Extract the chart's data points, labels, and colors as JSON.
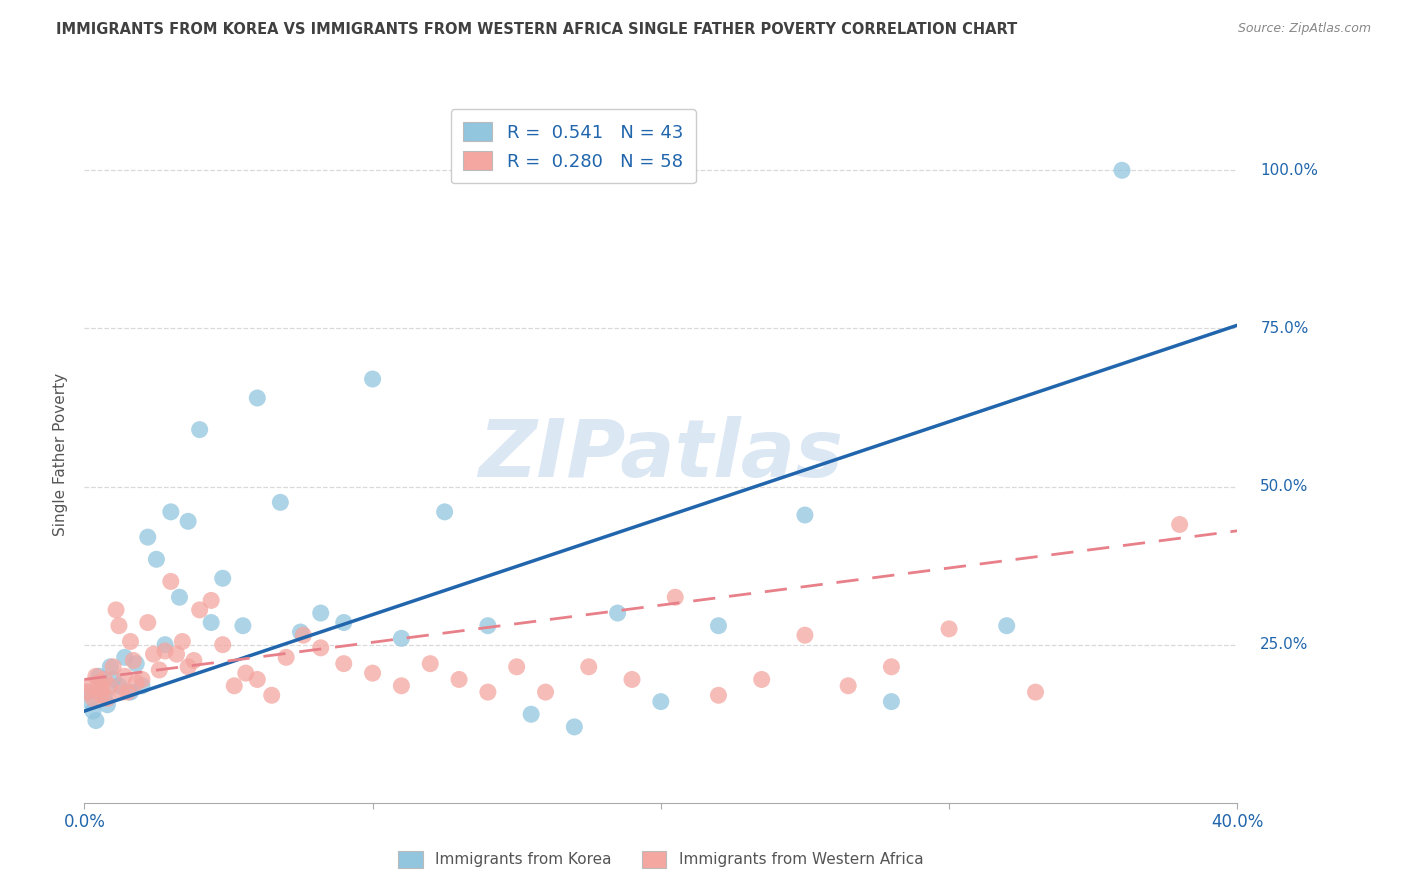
{
  "title": "IMMIGRANTS FROM KOREA VS IMMIGRANTS FROM WESTERN AFRICA SINGLE FATHER POVERTY CORRELATION CHART",
  "source": "Source: ZipAtlas.com",
  "ylabel": "Single Father Poverty",
  "right_yticks": [
    "100.0%",
    "75.0%",
    "50.0%",
    "25.0%"
  ],
  "right_ytick_vals": [
    1.0,
    0.75,
    0.5,
    0.25
  ],
  "xlim": [
    0.0,
    0.4
  ],
  "ylim": [
    0.0,
    1.1
  ],
  "korea_color": "#92c5de",
  "wa_color": "#f4a6a0",
  "korea_line_color": "#2166ac",
  "wa_line_color": "#f4a6a0",
  "R_korea": 0.541,
  "N_korea": 43,
  "R_wa": 0.28,
  "N_wa": 58,
  "legend_label_korea": "R =  0.541   N = 43",
  "legend_label_wa": "R =  0.280   N = 58",
  "legend_label_korea_bottom": "Immigrants from Korea",
  "legend_label_wa_bottom": "Immigrants from Western Africa",
  "watermark": "ZIPatlas",
  "korea_x": [
    0.001,
    0.002,
    0.003,
    0.004,
    0.005,
    0.006,
    0.007,
    0.008,
    0.009,
    0.01,
    0.012,
    0.014,
    0.016,
    0.018,
    0.02,
    0.022,
    0.025,
    0.028,
    0.03,
    0.033,
    0.036,
    0.04,
    0.044,
    0.048,
    0.055,
    0.06,
    0.068,
    0.075,
    0.082,
    0.09,
    0.1,
    0.11,
    0.125,
    0.14,
    0.155,
    0.17,
    0.185,
    0.2,
    0.22,
    0.25,
    0.28,
    0.32,
    0.36
  ],
  "korea_y": [
    0.175,
    0.16,
    0.145,
    0.13,
    0.2,
    0.19,
    0.17,
    0.155,
    0.215,
    0.195,
    0.185,
    0.23,
    0.175,
    0.22,
    0.185,
    0.42,
    0.385,
    0.25,
    0.46,
    0.325,
    0.445,
    0.59,
    0.285,
    0.355,
    0.28,
    0.64,
    0.475,
    0.27,
    0.3,
    0.285,
    0.67,
    0.26,
    0.46,
    0.28,
    0.14,
    0.12,
    0.3,
    0.16,
    0.28,
    0.455,
    0.16,
    0.28,
    1.0
  ],
  "wa_x": [
    0.001,
    0.002,
    0.003,
    0.004,
    0.005,
    0.006,
    0.006,
    0.007,
    0.008,
    0.009,
    0.01,
    0.011,
    0.012,
    0.013,
    0.014,
    0.015,
    0.016,
    0.017,
    0.018,
    0.02,
    0.022,
    0.024,
    0.026,
    0.028,
    0.03,
    0.032,
    0.034,
    0.036,
    0.038,
    0.04,
    0.044,
    0.048,
    0.052,
    0.056,
    0.06,
    0.065,
    0.07,
    0.076,
    0.082,
    0.09,
    0.1,
    0.11,
    0.12,
    0.13,
    0.14,
    0.15,
    0.16,
    0.175,
    0.19,
    0.205,
    0.22,
    0.235,
    0.25,
    0.265,
    0.28,
    0.3,
    0.33,
    0.38
  ],
  "wa_y": [
    0.175,
    0.185,
    0.165,
    0.2,
    0.19,
    0.18,
    0.17,
    0.195,
    0.165,
    0.185,
    0.215,
    0.305,
    0.28,
    0.175,
    0.2,
    0.175,
    0.255,
    0.225,
    0.19,
    0.195,
    0.285,
    0.235,
    0.21,
    0.24,
    0.35,
    0.235,
    0.255,
    0.215,
    0.225,
    0.305,
    0.32,
    0.25,
    0.185,
    0.205,
    0.195,
    0.17,
    0.23,
    0.265,
    0.245,
    0.22,
    0.205,
    0.185,
    0.22,
    0.195,
    0.175,
    0.215,
    0.175,
    0.215,
    0.195,
    0.325,
    0.17,
    0.195,
    0.265,
    0.185,
    0.215,
    0.275,
    0.175,
    0.44
  ],
  "background_color": "#ffffff",
  "grid_color": "#d9d9d9",
  "title_color": "#404040",
  "axis_label_color": "#2166ac",
  "right_axis_color": "#2166ac"
}
